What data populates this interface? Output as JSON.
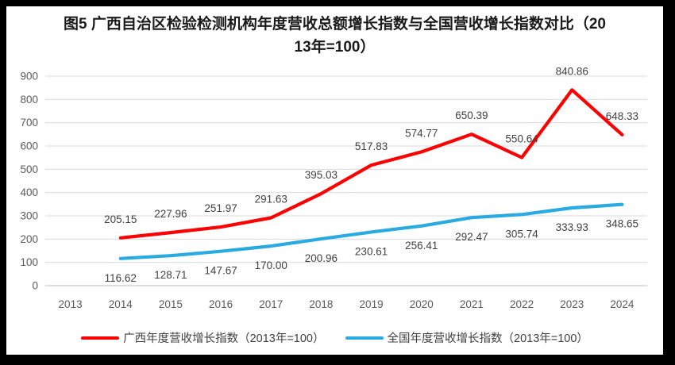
{
  "chart_data": {
    "type": "line",
    "title": "图5  广西自治区检验检测机构年度营收总额增长指数与全国营收增长指数对比（2013年=100）",
    "categories": [
      "2013",
      "2014",
      "2015",
      "2016",
      "2017",
      "2018",
      "2019",
      "2020",
      "2021",
      "2022",
      "2023",
      "2024"
    ],
    "xlabel": "",
    "ylabel": "",
    "ylim": [
      0,
      900
    ],
    "y_ticks": [
      0,
      100,
      200,
      300,
      400,
      500,
      600,
      700,
      800,
      900
    ],
    "grid": true,
    "legend_position": "bottom",
    "series": [
      {
        "name": "广西年度营收增长指数（2013年=100）",
        "color": "#FF0000",
        "start_category_index": 1,
        "label_position": "above",
        "values": [
          205.15,
          227.96,
          251.97,
          291.63,
          395.03,
          517.83,
          574.77,
          650.39,
          550.64,
          840.86,
          648.33
        ]
      },
      {
        "name": "全国年度营收增长指数（2013年=100）",
        "color": "#29ABE2",
        "start_category_index": 1,
        "label_position": "below",
        "values": [
          116.62,
          128.71,
          147.67,
          170.0,
          200.96,
          230.61,
          256.41,
          292.47,
          305.74,
          333.93,
          348.65
        ]
      }
    ],
    "colors": {
      "gridline": "#D9D9D9",
      "axis_line": "#BFBFBF",
      "tick_label": "#595959",
      "data_label": "#404040",
      "title": "#1A1A1A",
      "frame_border": "#000000",
      "background": "#FFFFFF"
    }
  }
}
